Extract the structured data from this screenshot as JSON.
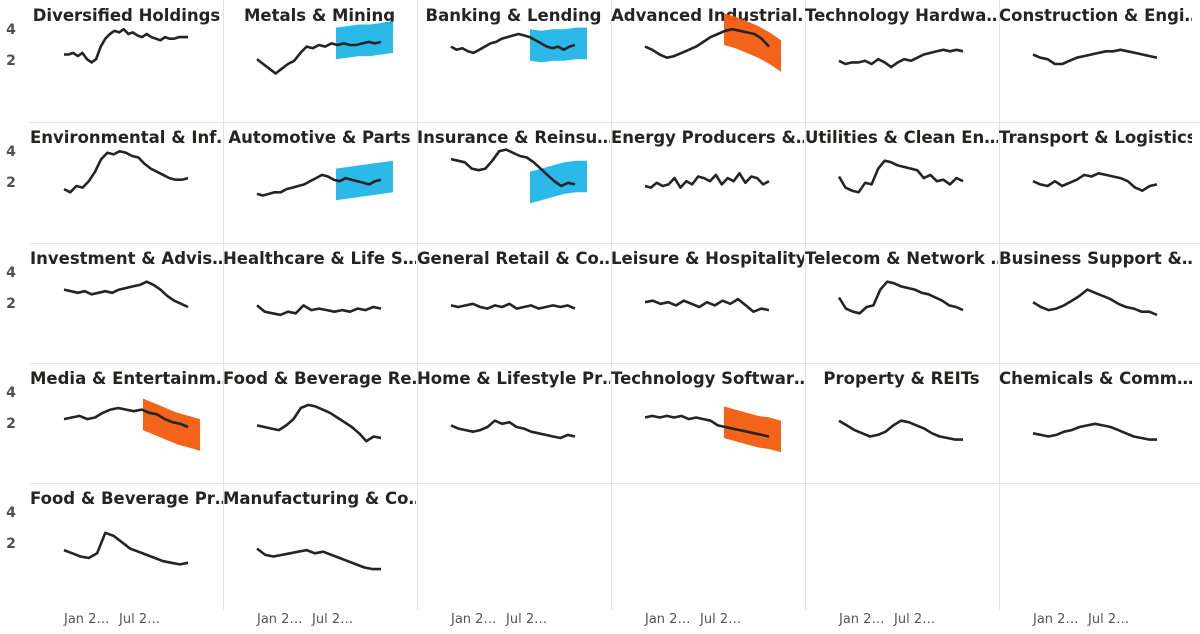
{
  "chart_data": {
    "type": "line",
    "layout": "small-multiples",
    "y_ticks": [
      2,
      4
    ],
    "x_tick_labels": [
      "Jan 2…",
      "Jul 2…"
    ],
    "colors": {
      "line": "#252423",
      "band_up": "#1fb5e8",
      "band_down": "#f25b0d"
    },
    "panels": [
      {
        "title": "Diversified Holdings",
        "values": [
          2.5,
          2.5,
          2.6,
          2.4,
          2.6,
          2.2,
          2.0,
          2.2,
          3.0,
          3.5,
          3.8,
          4.0,
          3.9,
          4.1,
          3.8,
          3.9,
          3.7,
          3.6,
          3.8,
          3.6,
          3.5,
          3.4,
          3.6,
          3.5,
          3.5,
          3.6,
          3.6,
          3.6
        ]
      },
      {
        "title": "Metals & Mining",
        "values": [
          2.2,
          1.9,
          1.6,
          1.3,
          1.6,
          1.9,
          2.1,
          2.6,
          3.0,
          2.9,
          3.1,
          3.0,
          3.2,
          3.1,
          3.2,
          3.1,
          3.1,
          3.2,
          3.3,
          3.2,
          3.3
        ],
        "forecast": {
          "direction": "up",
          "values": [
            3.2,
            3.3,
            3.4,
            3.4,
            3.5,
            3.6
          ]
        }
      },
      {
        "title": "Banking & Lending",
        "values": [
          3.0,
          2.8,
          2.9,
          2.7,
          2.6,
          2.8,
          3.0,
          3.2,
          3.3,
          3.5,
          3.6,
          3.7,
          3.8,
          3.7,
          3.6,
          3.4,
          3.2,
          3.0,
          2.9,
          3.0,
          2.8,
          3.0,
          3.1
        ],
        "forecast": {
          "direction": "up",
          "values": [
            3.1,
            3.0,
            3.1,
            3.1,
            3.2,
            3.2
          ]
        }
      },
      {
        "title": "Advanced Industrial…",
        "values": [
          3.0,
          2.8,
          2.5,
          2.3,
          2.4,
          2.6,
          2.8,
          3.0,
          3.3,
          3.6,
          3.8,
          4.0,
          4.1,
          4.0,
          3.9,
          3.8,
          3.5,
          3.0
        ],
        "forecast": {
          "direction": "down",
          "values": [
            4.1,
            3.9,
            3.6,
            3.3,
            2.9,
            2.4
          ]
        }
      },
      {
        "title": "Technology Hardwa…",
        "values": [
          2.1,
          1.9,
          2.0,
          2.0,
          2.1,
          1.9,
          2.2,
          2.0,
          1.7,
          2.0,
          2.2,
          2.1,
          2.3,
          2.5,
          2.6,
          2.7,
          2.8,
          2.7,
          2.8,
          2.7
        ]
      },
      {
        "title": "Construction & Engi…",
        "values": [
          2.5,
          2.3,
          2.2,
          1.9,
          1.9,
          2.1,
          2.3,
          2.4,
          2.5,
          2.6,
          2.7,
          2.7,
          2.8,
          2.7,
          2.6,
          2.5,
          2.4,
          2.3
        ]
      },
      {
        "title": "Environmental & Inf…",
        "values": [
          1.7,
          1.5,
          1.9,
          1.8,
          2.2,
          2.8,
          3.6,
          4.0,
          3.9,
          4.1,
          4.0,
          3.8,
          3.7,
          3.3,
          3.0,
          2.8,
          2.6,
          2.4,
          2.3,
          2.3,
          2.4
        ]
      },
      {
        "title": "Automotive & Parts",
        "values": [
          1.4,
          1.3,
          1.4,
          1.5,
          1.5,
          1.7,
          1.8,
          1.9,
          2.0,
          2.2,
          2.4,
          2.6,
          2.5,
          2.3,
          2.2,
          2.4,
          2.3,
          2.2,
          2.1,
          2.0,
          2.2,
          2.3
        ],
        "forecast": {
          "direction": "up",
          "values": [
            2.0,
            2.1,
            2.2,
            2.3,
            2.4,
            2.5
          ]
        }
      },
      {
        "title": "Insurance & Reinsu…",
        "values": [
          3.6,
          3.5,
          3.4,
          3.0,
          2.9,
          3.0,
          3.5,
          4.1,
          4.2,
          4.0,
          3.8,
          3.7,
          3.4,
          3.0,
          2.6,
          2.2,
          1.9,
          2.1,
          2.0
        ],
        "forecast": {
          "direction": "up",
          "values": [
            1.8,
            2.0,
            2.2,
            2.4,
            2.5,
            2.5
          ]
        }
      },
      {
        "title": "Energy Producers &…",
        "values": [
          1.9,
          1.8,
          2.1,
          1.9,
          2.0,
          2.4,
          1.8,
          2.2,
          2.0,
          2.5,
          2.4,
          2.2,
          2.6,
          2.0,
          2.4,
          2.2,
          2.7,
          2.1,
          2.5,
          2.4,
          2.0,
          2.2
        ]
      },
      {
        "title": "Utilities & Clean En…",
        "values": [
          2.5,
          1.8,
          1.6,
          1.5,
          2.1,
          2.0,
          3.0,
          3.5,
          3.4,
          3.2,
          3.1,
          3.0,
          2.9,
          2.4,
          2.6,
          2.2,
          2.3,
          2.0,
          2.4,
          2.2
        ]
      },
      {
        "title": "Transport & Logistics",
        "values": [
          2.2,
          2.0,
          1.9,
          2.2,
          1.9,
          2.1,
          2.3,
          2.6,
          2.5,
          2.7,
          2.6,
          2.5,
          2.4,
          2.2,
          1.8,
          1.6,
          1.9,
          2.0
        ]
      },
      {
        "title": "Investment & Advis…",
        "values": [
          3.0,
          2.9,
          2.8,
          2.9,
          2.7,
          2.8,
          2.9,
          2.8,
          3.0,
          3.1,
          3.2,
          3.3,
          3.5,
          3.3,
          3.0,
          2.6,
          2.3,
          2.1,
          1.9
        ]
      },
      {
        "title": "Healthcare & Life S…",
        "values": [
          2.0,
          1.6,
          1.5,
          1.4,
          1.6,
          1.5,
          2.0,
          1.7,
          1.8,
          1.7,
          1.6,
          1.7,
          1.6,
          1.8,
          1.7,
          1.9,
          1.8
        ]
      },
      {
        "title": "General Retail & Co…",
        "values": [
          2.0,
          1.9,
          2.0,
          2.1,
          1.9,
          1.8,
          2.0,
          1.9,
          2.1,
          1.8,
          1.9,
          2.0,
          1.8,
          1.9,
          2.0,
          1.9,
          2.0,
          1.8
        ]
      },
      {
        "title": "Leisure & Hospitality",
        "values": [
          2.2,
          2.3,
          2.1,
          2.2,
          2.0,
          2.3,
          2.1,
          1.9,
          2.2,
          2.0,
          2.3,
          2.1,
          2.4,
          2.0,
          1.6,
          1.8,
          1.7
        ]
      },
      {
        "title": "Telecom & Network …",
        "values": [
          2.5,
          1.8,
          1.6,
          1.5,
          1.9,
          2.0,
          3.0,
          3.5,
          3.4,
          3.2,
          3.1,
          3.0,
          2.8,
          2.7,
          2.5,
          2.3,
          2.0,
          1.9,
          1.7
        ]
      },
      {
        "title": "Business Support &…",
        "values": [
          2.2,
          1.9,
          1.7,
          1.8,
          2.0,
          2.3,
          2.6,
          3.0,
          2.8,
          2.6,
          2.4,
          2.1,
          1.9,
          1.8,
          1.6,
          1.6,
          1.4
        ]
      },
      {
        "title": "Media & Entertainm…",
        "values": [
          2.4,
          2.5,
          2.6,
          2.4,
          2.5,
          2.8,
          3.0,
          3.1,
          3.0,
          2.9,
          3.0,
          2.8,
          2.7,
          2.4,
          2.2,
          2.1,
          1.9
        ],
        "forecast": {
          "direction": "down",
          "values": [
            2.7,
            2.4,
            2.1,
            1.8,
            1.6,
            1.4
          ]
        }
      },
      {
        "title": "Food & Beverage Re…",
        "values": [
          2.0,
          1.9,
          1.8,
          1.7,
          2.0,
          2.4,
          3.1,
          3.3,
          3.2,
          3.0,
          2.8,
          2.5,
          2.2,
          1.9,
          1.5,
          1.0,
          1.3,
          1.2
        ]
      },
      {
        "title": "Home & Lifestyle Pr…",
        "values": [
          2.0,
          1.8,
          1.7,
          1.6,
          1.7,
          1.9,
          2.3,
          2.1,
          2.2,
          1.9,
          1.8,
          1.6,
          1.5,
          1.4,
          1.3,
          1.2,
          1.4,
          1.3
        ]
      },
      {
        "title": "Technology Softwar…",
        "values": [
          2.5,
          2.6,
          2.5,
          2.6,
          2.5,
          2.6,
          2.4,
          2.5,
          2.4,
          2.3,
          2.0,
          1.9,
          1.8,
          1.7,
          1.6,
          1.5,
          1.4,
          1.3
        ],
        "forecast": {
          "direction": "down",
          "values": [
            2.2,
            2.0,
            1.8,
            1.6,
            1.5,
            1.3
          ]
        }
      },
      {
        "title": "Property & REITs",
        "values": [
          2.3,
          2.0,
          1.7,
          1.5,
          1.3,
          1.4,
          1.6,
          2.0,
          2.3,
          2.2,
          2.0,
          1.8,
          1.5,
          1.3,
          1.2,
          1.1,
          1.1
        ]
      },
      {
        "title": "Chemicals & Comm…",
        "values": [
          1.5,
          1.4,
          1.3,
          1.4,
          1.6,
          1.7,
          1.9,
          2.0,
          2.1,
          2.0,
          1.9,
          1.7,
          1.5,
          1.3,
          1.2,
          1.1,
          1.1
        ]
      },
      {
        "title": "Food & Beverage Pr…",
        "values": [
          1.7,
          1.5,
          1.3,
          1.2,
          1.5,
          2.8,
          2.6,
          2.2,
          1.8,
          1.6,
          1.4,
          1.2,
          1.0,
          0.9,
          0.8,
          0.9
        ]
      },
      {
        "title": "Manufacturing & Co…",
        "values": [
          1.8,
          1.4,
          1.3,
          1.4,
          1.5,
          1.6,
          1.7,
          1.5,
          1.6,
          1.4,
          1.2,
          1.0,
          0.8,
          0.6,
          0.5,
          0.5
        ]
      }
    ]
  }
}
